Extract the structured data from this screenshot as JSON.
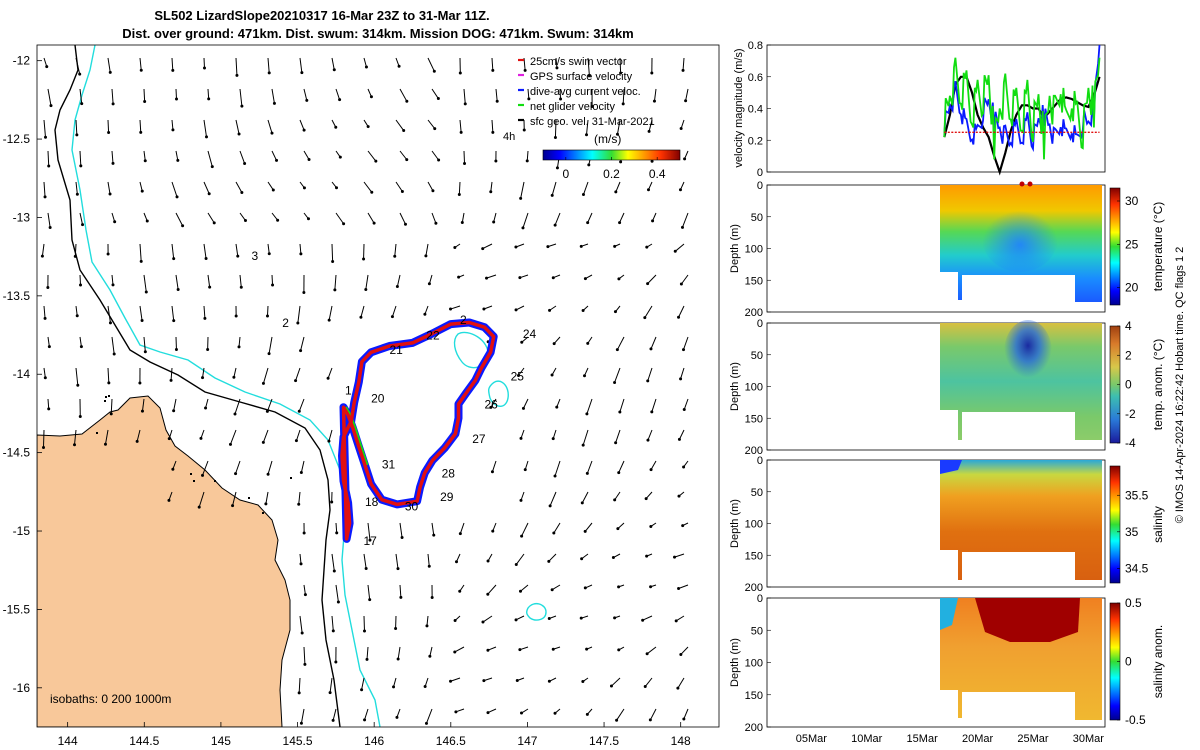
{
  "header": {
    "line1": "SL502 LizardSlope20210317 16-Mar 23Z to 31-Mar 11Z.",
    "line2": "Dist. over ground: 471km. Dist. swum: 314km. Mission DOG: 471km. Swum: 314km"
  },
  "credit": "© IMOS 14-Apr-2024 16:22:42 Hobart time. QC flags 1  2",
  "colors": {
    "land": "#f8c89a",
    "track_blue": "#0a1aff",
    "track_red": "#e01010",
    "isobath": "#22dddd",
    "net_glider": "#11dd11"
  },
  "chart_data": [
    {
      "type": "map",
      "xlim": [
        143.8,
        148.25
      ],
      "ylim": [
        -16.25,
        -11.9
      ],
      "y_reversed": true,
      "x_ticks": [
        "144",
        "144.5",
        "145",
        "145.5",
        "146",
        "146.5",
        "147",
        "147.5",
        "148"
      ],
      "x_tick_values": [
        144,
        144.5,
        145,
        145.5,
        146,
        146.5,
        147,
        147.5,
        148
      ],
      "y_ticks": [
        "-12",
        "-12.5",
        "-13",
        "-13.5",
        "-14",
        "-14.5",
        "-15",
        "-15.5",
        "-16"
      ],
      "y_tick_values": [
        -12,
        -12.5,
        -13,
        -13.5,
        -14,
        -14.5,
        -15,
        -15.5,
        -16
      ],
      "legend": [
        {
          "label": "25cm/s swim vector",
          "color": "#e01010"
        },
        {
          "label": "GPS surface velocity",
          "color": "#e020e0"
        },
        {
          "label": "dive-avg current veloc.",
          "color": "#0a1aff"
        },
        {
          "label": "net glider velocity",
          "color": "#11dd11"
        },
        {
          "label": "sfc geo. vel. 31-Mar-2021",
          "color": "#000000"
        }
      ],
      "time_label": "4h",
      "colorbar": {
        "label": "(m/s)",
        "ticks": [
          "0",
          "0.2",
          "0.4"
        ],
        "tick_values": [
          0,
          0.2,
          0.4
        ],
        "range": [
          -0.1,
          0.5
        ]
      },
      "isobaths_label": "isobaths: 0   200  1000m",
      "day_labels": [
        {
          "text": "2",
          "lon": 145.4,
          "lat": -13.7
        },
        {
          "text": "3",
          "lon": 145.2,
          "lat": -13.27
        },
        {
          "text": "1",
          "lon": 145.81,
          "lat": -14.13
        },
        {
          "text": "20",
          "lon": 145.98,
          "lat": -14.18
        },
        {
          "text": "21",
          "lon": 146.1,
          "lat": -13.87
        },
        {
          "text": "22",
          "lon": 146.34,
          "lat": -13.78
        },
        {
          "text": "2",
          "lon": 146.56,
          "lat": -13.68
        },
        {
          "text": "24",
          "lon": 146.97,
          "lat": -13.77
        },
        {
          "text": "25",
          "lon": 146.89,
          "lat": -14.04
        },
        {
          "text": "26",
          "lon": 146.72,
          "lat": -14.22
        },
        {
          "text": "27",
          "lon": 146.64,
          "lat": -14.44
        },
        {
          "text": "28",
          "lon": 146.44,
          "lat": -14.66
        },
        {
          "text": "29",
          "lon": 146.43,
          "lat": -14.81
        },
        {
          "text": "30",
          "lon": 146.2,
          "lat": -14.87
        },
        {
          "text": "31",
          "lon": 146.05,
          "lat": -14.6
        },
        {
          "text": "18",
          "lon": 145.94,
          "lat": -14.84
        },
        {
          "text": "17",
          "lon": 145.93,
          "lat": -15.09
        }
      ],
      "track": [
        [
          145.82,
          -15.05
        ],
        [
          145.84,
          -14.95
        ],
        [
          145.83,
          -14.82
        ],
        [
          145.8,
          -14.68
        ],
        [
          145.79,
          -14.52
        ],
        [
          145.8,
          -14.4
        ],
        [
          145.85,
          -14.3
        ],
        [
          145.87,
          -14.18
        ],
        [
          145.9,
          -14.05
        ],
        [
          145.92,
          -13.92
        ],
        [
          145.98,
          -13.86
        ],
        [
          146.1,
          -13.82
        ],
        [
          146.25,
          -13.8
        ],
        [
          146.38,
          -13.74
        ],
        [
          146.5,
          -13.68
        ],
        [
          146.62,
          -13.67
        ],
        [
          146.72,
          -13.7
        ],
        [
          146.78,
          -13.76
        ],
        [
          146.76,
          -13.86
        ],
        [
          146.7,
          -13.96
        ],
        [
          146.66,
          -14.04
        ],
        [
          146.6,
          -14.12
        ],
        [
          146.55,
          -14.19
        ],
        [
          146.55,
          -14.28
        ],
        [
          146.53,
          -14.38
        ],
        [
          146.46,
          -14.47
        ],
        [
          146.38,
          -14.55
        ],
        [
          146.33,
          -14.63
        ],
        [
          146.3,
          -14.72
        ],
        [
          146.28,
          -14.81
        ],
        [
          146.15,
          -14.83
        ],
        [
          146.05,
          -14.8
        ],
        [
          145.98,
          -14.7
        ],
        [
          145.94,
          -14.58
        ],
        [
          145.9,
          -14.46
        ],
        [
          145.86,
          -14.34
        ],
        [
          145.83,
          -14.26
        ],
        [
          145.8,
          -14.21
        ]
      ]
    },
    {
      "type": "line",
      "ylabel": "velocity magnitude (m/s)",
      "ylim": [
        0,
        0.8
      ],
      "y_ticks": [
        "0",
        "0.2",
        "0.4",
        "0.6",
        "0.8"
      ],
      "y_tick_values": [
        0,
        0.2,
        0.4,
        0.6,
        0.8
      ],
      "x": [
        17,
        17.5,
        18,
        18.5,
        19,
        19.5,
        20,
        20.5,
        21,
        21.5,
        22,
        22.5,
        23,
        23.5,
        24,
        24.5,
        25,
        25.5,
        26,
        26.5,
        27,
        27.5,
        28,
        28.5,
        29,
        29.5,
        30,
        30.5,
        31
      ],
      "series": [
        {
          "color": "#000000",
          "values": [
            0.22,
            0.36,
            0.55,
            0.6,
            0.6,
            0.5,
            0.36,
            0.28,
            0.22,
            0.1,
            0.0,
            0.12,
            0.26,
            0.36,
            0.42,
            0.42,
            0.4,
            0.4,
            0.34,
            0.38,
            0.42,
            0.46,
            0.47,
            0.46,
            0.44,
            0.42,
            0.41,
            0.48,
            0.6
          ]
        },
        {
          "color": "#0a1aff",
          "values": [
            0.3,
            0.42,
            0.5,
            0.38,
            0.28,
            0.24,
            0.26,
            0.38,
            0.44,
            0.34,
            0.28,
            0.22,
            0.2,
            0.28,
            0.22,
            0.34,
            0.2,
            0.32,
            0.36,
            0.3,
            0.2,
            0.3,
            0.22,
            0.28,
            0.2,
            0.32,
            0.3,
            0.4,
            0.8
          ]
        },
        {
          "color": "#11dd11",
          "values": [
            0.34,
            0.48,
            0.6,
            0.46,
            0.55,
            0.36,
            0.52,
            0.46,
            0.58,
            0.2,
            0.4,
            0.5,
            0.36,
            0.44,
            0.32,
            0.52,
            0.28,
            0.46,
            0.2,
            0.48,
            0.36,
            0.52,
            0.3,
            0.46,
            0.38,
            0.24,
            0.5,
            0.4,
            0.72
          ]
        },
        {
          "color": "#e01010",
          "values": [
            0.25,
            0.25,
            0.25,
            0.25,
            0.25,
            0.25,
            0.25,
            0.25,
            0.25,
            0.25,
            0.25,
            0.25,
            0.25,
            0.25,
            0.25,
            0.25,
            0.25,
            0.25,
            0.25,
            0.25,
            0.25,
            0.25,
            0.25,
            0.25,
            0.25,
            0.25,
            0.25,
            0.25,
            0.25
          ]
        }
      ]
    },
    {
      "type": "heatmap",
      "ylabel": "Depth (m)",
      "ylim": [
        0,
        200
      ],
      "y_ticks": [
        "0",
        "50",
        "100",
        "150",
        "200"
      ],
      "y_tick_values": [
        0,
        50,
        100,
        150,
        200
      ],
      "colorbar": {
        "label": "temperature (°C)",
        "ticks": [
          "30",
          "25",
          "20"
        ],
        "tick_values": [
          30,
          25,
          20
        ],
        "range": [
          18,
          31.5
        ],
        "scale": "jet"
      }
    },
    {
      "type": "heatmap",
      "ylabel": "Depth (m)",
      "ylim": [
        0,
        200
      ],
      "y_ticks": [
        "0",
        "50",
        "100",
        "150",
        "200"
      ],
      "y_tick_values": [
        0,
        50,
        100,
        150,
        200
      ],
      "colorbar": {
        "label": "temp. anom. (°C)",
        "ticks": [
          "4",
          "2",
          "0",
          "-2",
          "-4"
        ],
        "tick_values": [
          4,
          2,
          0,
          -2,
          -4
        ],
        "range": [
          -4,
          4
        ],
        "scale": "diverging"
      }
    },
    {
      "type": "heatmap",
      "ylabel": "Depth (m)",
      "ylim": [
        0,
        200
      ],
      "y_ticks": [
        "0",
        "50",
        "100",
        "150",
        "200"
      ],
      "y_tick_values": [
        0,
        50,
        100,
        150,
        200
      ],
      "colorbar": {
        "label": "salinity",
        "ticks": [
          "35.5",
          "35",
          "34.5"
        ],
        "tick_values": [
          35.5,
          35,
          34.5
        ],
        "range": [
          34.3,
          35.9
        ],
        "scale": "jet"
      }
    },
    {
      "type": "heatmap",
      "ylabel": "Depth (m)",
      "ylim": [
        0,
        200
      ],
      "y_ticks": [
        "0",
        "50",
        "100",
        "150",
        "200"
      ],
      "y_tick_values": [
        0,
        50,
        100,
        150,
        200
      ],
      "x_ticks": [
        "05Mar",
        "10Mar",
        "15Mar",
        "20Mar",
        "25Mar",
        "30Mar"
      ],
      "x_tick_values": [
        5,
        10,
        15,
        20,
        25,
        30
      ],
      "colorbar": {
        "label": "salinity anom.",
        "ticks": [
          "0.5",
          "0",
          "-0.5"
        ],
        "tick_values": [
          0.5,
          0,
          -0.5
        ],
        "range": [
          -0.5,
          0.5
        ],
        "scale": "jet"
      }
    }
  ]
}
